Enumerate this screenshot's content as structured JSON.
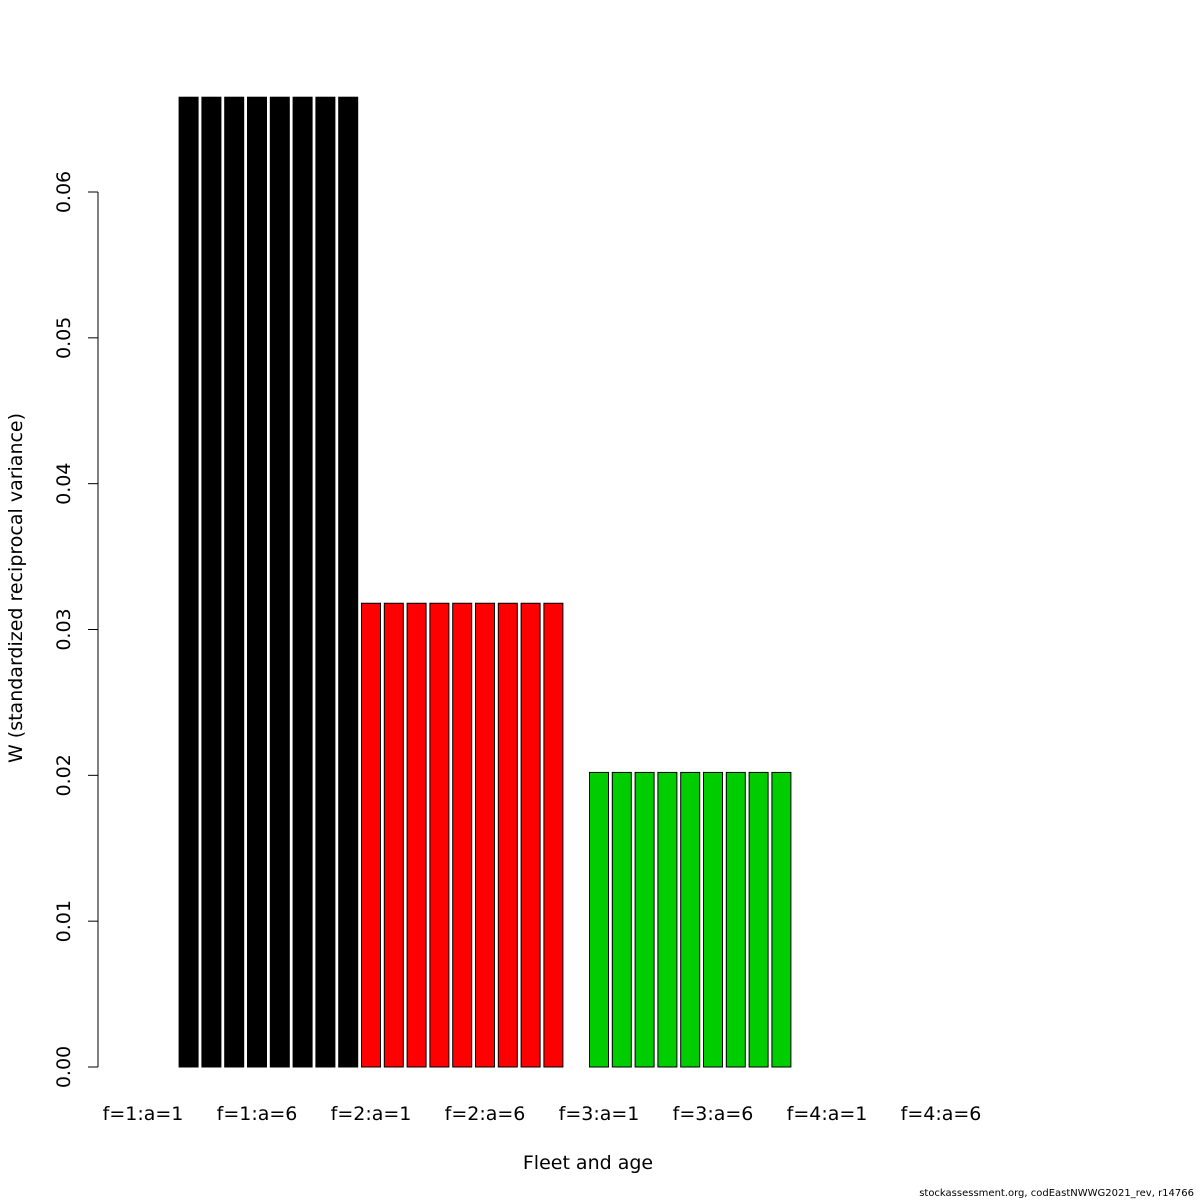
{
  "chart_data": {
    "type": "bar",
    "title": "",
    "xlabel": "Fleet and age",
    "ylabel": "W (standardized reciprocal variance)",
    "ylim": [
      0,
      0.0665
    ],
    "yticks": [
      "0.00",
      "0.01",
      "0.02",
      "0.03",
      "0.04",
      "0.05",
      "0.06"
    ],
    "ytick_values": [
      0,
      0.01,
      0.02,
      0.03,
      0.04,
      0.05,
      0.06
    ],
    "xtick_labels": [
      "f=1:a=1",
      "f=1:a=6",
      "f=2:a=1",
      "f=2:a=6",
      "f=3:a=1",
      "f=3:a=6",
      "f=4:a=1",
      "f=4:a=6"
    ],
    "grid": false,
    "fleet_colors": {
      "1": "#000000",
      "2": "#ff0000",
      "3": "#00cd00",
      "4": "#0000ff"
    },
    "series": [
      {
        "fleet": 1,
        "ages": [
          1,
          2,
          3,
          4,
          5,
          6,
          7,
          8,
          9,
          10
        ],
        "values": [
          0,
          0,
          0.0665,
          0.0665,
          0.0665,
          0.0665,
          0.0665,
          0.0665,
          0.0665,
          0.0665
        ]
      },
      {
        "fleet": 2,
        "ages": [
          1,
          2,
          3,
          4,
          5,
          6,
          7,
          8,
          9,
          10
        ],
        "values": [
          0.0318,
          0.0318,
          0.0318,
          0.0318,
          0.0318,
          0.0318,
          0.0318,
          0.0318,
          0.0318,
          0
        ]
      },
      {
        "fleet": 3,
        "ages": [
          1,
          2,
          3,
          4,
          5,
          6,
          7,
          8,
          9,
          10
        ],
        "values": [
          0.0202,
          0.0202,
          0.0202,
          0.0202,
          0.0202,
          0.0202,
          0.0202,
          0.0202,
          0.0202,
          0
        ]
      },
      {
        "fleet": 4,
        "ages": [
          1,
          2,
          3,
          4,
          5,
          6,
          7,
          8,
          9,
          10
        ],
        "values": [
          0,
          0,
          0,
          0,
          0,
          0,
          0,
          0,
          0,
          0
        ]
      }
    ]
  },
  "footer": "stockassessment.org, codEastNWWG2021_rev, r14766"
}
